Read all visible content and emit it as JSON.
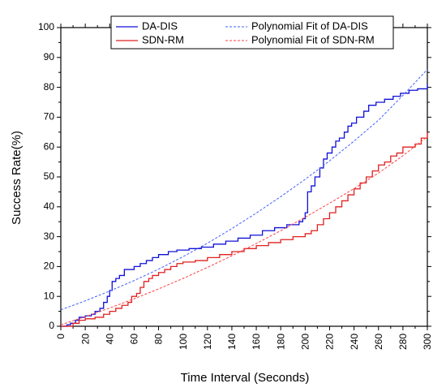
{
  "chart_data": {
    "type": "line",
    "title": "",
    "xlabel": "Time Interval (Seconds)",
    "ylabel": "Success Rate(%)",
    "xlim": [
      0,
      300
    ],
    "ylim": [
      0,
      100
    ],
    "xticks": [
      "0",
      "20",
      "40",
      "60",
      "80",
      "100",
      "120",
      "140",
      "160",
      "180",
      "200",
      "220",
      "240",
      "260",
      "280",
      "300"
    ],
    "yticks": [
      "0",
      "10",
      "20",
      "30",
      "40",
      "50",
      "60",
      "70",
      "80",
      "90",
      "100"
    ],
    "grid": false,
    "legend_placement": "top",
    "series": [
      {
        "name": "DA-DIS",
        "style": "solid-step",
        "color": "#1010d8",
        "x": [
          0,
          5,
          8,
          12,
          15,
          20,
          25,
          28,
          32,
          35,
          38,
          40,
          42,
          45,
          48,
          52,
          60,
          65,
          70,
          75,
          80,
          88,
          95,
          105,
          115,
          125,
          135,
          145,
          155,
          165,
          175,
          185,
          195,
          198,
          200,
          202,
          205,
          208,
          212,
          215,
          218,
          222,
          225,
          228,
          232,
          235,
          238,
          242,
          248,
          252,
          258,
          265,
          272,
          278,
          285,
          292,
          298,
          300
        ],
        "values": [
          0,
          0.5,
          1,
          2,
          3,
          3.5,
          4,
          5,
          6,
          8,
          10,
          12,
          15,
          16,
          17,
          19,
          20,
          21,
          22,
          23,
          24,
          25,
          25.5,
          26,
          26.5,
          27.5,
          28.5,
          29.5,
          30.5,
          32,
          33,
          34,
          35,
          36,
          38,
          45,
          47,
          50,
          53,
          56,
          58,
          60,
          62,
          63,
          65,
          67,
          68,
          70,
          72,
          74,
          75,
          76,
          77,
          78,
          79,
          79.5,
          79.5,
          81
        ]
      },
      {
        "name": "SDN-RM",
        "style": "solid-step",
        "color": "#e02020",
        "x": [
          0,
          10,
          15,
          20,
          28,
          35,
          40,
          45,
          50,
          55,
          58,
          62,
          65,
          68,
          72,
          75,
          80,
          85,
          90,
          95,
          100,
          110,
          120,
          130,
          140,
          150,
          160,
          170,
          180,
          190,
          200,
          205,
          210,
          215,
          220,
          225,
          230,
          235,
          240,
          245,
          250,
          255,
          260,
          265,
          270,
          275,
          280,
          290,
          295,
          300
        ],
        "values": [
          0,
          1,
          2,
          2.5,
          3,
          4,
          5,
          6,
          7,
          8,
          10,
          11,
          13,
          15,
          16,
          17,
          18,
          19,
          20,
          21,
          21.5,
          22,
          23,
          24,
          25,
          26,
          27,
          28,
          29,
          30,
          31,
          32,
          34,
          36,
          38,
          40,
          42,
          44,
          46,
          48,
          50,
          52,
          54,
          55,
          57,
          58,
          60,
          61,
          63,
          65
        ]
      },
      {
        "name": "Polynomial Fit of DA-DIS",
        "style": "dashed",
        "color": "#4060ff",
        "x": [
          0,
          20,
          40,
          60,
          80,
          100,
          120,
          140,
          160,
          180,
          200,
          220,
          240,
          260,
          280,
          300
        ],
        "values": [
          5.5,
          8.5,
          11.8,
          15.3,
          19.1,
          23.3,
          27.8,
          32.7,
          37.9,
          43.4,
          49.2,
          55.4,
          62.0,
          69.0,
          77.3,
          86.0
        ]
      },
      {
        "name": "Polynomial Fit of SDN-RM",
        "style": "dashed",
        "color": "#ff4040",
        "x": [
          0,
          20,
          40,
          60,
          80,
          100,
          120,
          140,
          160,
          180,
          200,
          220,
          240,
          260,
          280,
          300
        ],
        "values": [
          0.5,
          3.2,
          6.1,
          9.2,
          12.5,
          16.0,
          19.7,
          23.6,
          27.7,
          32.0,
          36.5,
          41.2,
          46.1,
          51.3,
          57.1,
          63.5
        ]
      }
    ]
  }
}
